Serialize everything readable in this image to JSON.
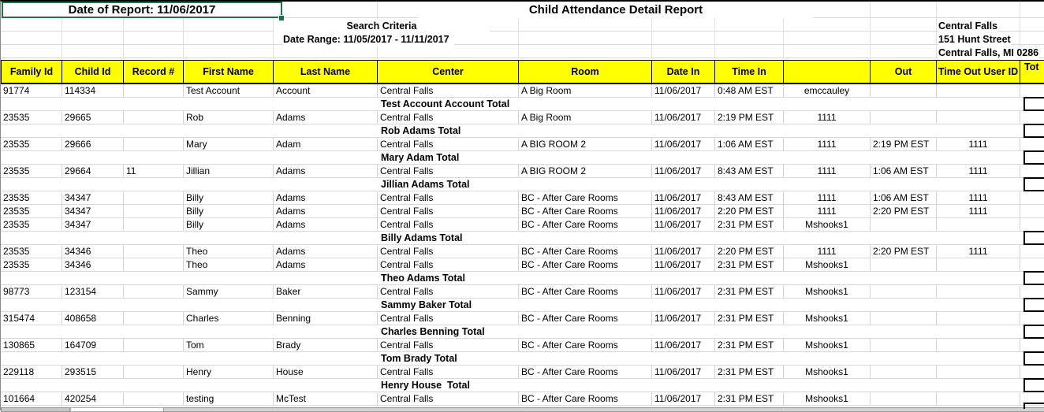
{
  "report": {
    "date_of_report": "Date of Report: 11/06/2017",
    "title": "Child Attendance Detail Report",
    "search_criteria_label": "Search Criteria",
    "date_range": "Date Range: 11/05/2017 - 11/11/2017",
    "center_name": "Central Falls",
    "center_address_line1": "151 Hunt Street",
    "center_address_line2": "Central Falls, MI 0286"
  },
  "colors": {
    "header_bg": "#ffff00",
    "selection_border": "#1f7245",
    "gridline": "#d9d9d9"
  },
  "table": {
    "columns": [
      {
        "id": "family_id",
        "label": "Family Id"
      },
      {
        "id": "child_id",
        "label": "Child Id"
      },
      {
        "id": "record",
        "label": "Record #"
      },
      {
        "id": "first_name",
        "label": "First Name"
      },
      {
        "id": "last_name",
        "label": "Last Name"
      },
      {
        "id": "center",
        "label": "Center"
      },
      {
        "id": "room",
        "label": "Room"
      },
      {
        "id": "date_in",
        "label": "Date In"
      },
      {
        "id": "time_in",
        "label": "Time In"
      },
      {
        "id": "time_in_user_id",
        "label": ""
      },
      {
        "id": "time_out",
        "label": "Out"
      },
      {
        "id": "time_out_user_id",
        "label": "Time Out User ID"
      },
      {
        "id": "total",
        "label": "Tot"
      }
    ],
    "rows": [
      {
        "type": "data",
        "cells": {
          "family_id": "91774",
          "child_id": "114334",
          "record": "",
          "first_name": "Test Account",
          "last_name": "Account",
          "center": "Central Falls",
          "room": "A Big Room",
          "date_in": "11/06/2017",
          "time_in": "0:48 AM EST",
          "time_in_user_id": "emccauley",
          "time_out": "",
          "time_out_user_id": ""
        }
      },
      {
        "type": "total",
        "label": "Test Account Account Total"
      },
      {
        "type": "data",
        "cells": {
          "family_id": "23535",
          "child_id": "29665",
          "record": "",
          "first_name": "Rob",
          "last_name": "Adams",
          "center": "Central Falls",
          "room": "A Big Room",
          "date_in": "11/06/2017",
          "time_in": "2:19 PM EST",
          "time_in_user_id": "1111",
          "time_out": "",
          "time_out_user_id": ""
        }
      },
      {
        "type": "total",
        "label": "Rob Adams Total"
      },
      {
        "type": "data",
        "cells": {
          "family_id": "23535",
          "child_id": "29666",
          "record": "",
          "first_name": "Mary",
          "last_name": "Adam",
          "center": "Central Falls",
          "room": "A BIG ROOM 2",
          "date_in": "11/06/2017",
          "time_in": "1:06 AM EST",
          "time_in_user_id": "1111",
          "time_out": "2:19 PM EST",
          "time_out_user_id": "1111"
        }
      },
      {
        "type": "total",
        "label": "Mary Adam Total"
      },
      {
        "type": "data",
        "cells": {
          "family_id": "23535",
          "child_id": "29664",
          "record": "11",
          "first_name": "Jillian",
          "last_name": "Adams",
          "center": "Central Falls",
          "room": "A BIG ROOM 2",
          "date_in": "11/06/2017",
          "time_in": "8:43 AM EST",
          "time_in_user_id": "1111",
          "time_out": "1:06 AM EST",
          "time_out_user_id": "1111"
        }
      },
      {
        "type": "total",
        "label": "Jillian Adams Total"
      },
      {
        "type": "data",
        "cells": {
          "family_id": "23535",
          "child_id": "34347",
          "record": "",
          "first_name": "Billy",
          "last_name": "Adams",
          "center": "Central Falls",
          "room": "BC - After Care Rooms",
          "date_in": "11/06/2017",
          "time_in": "8:43 AM EST",
          "time_in_user_id": "1111",
          "time_out": "1:06 AM EST",
          "time_out_user_id": "1111"
        }
      },
      {
        "type": "data",
        "cells": {
          "family_id": "23535",
          "child_id": "34347",
          "record": "",
          "first_name": "Billy",
          "last_name": "Adams",
          "center": "Central Falls",
          "room": "BC - After Care Rooms",
          "date_in": "11/06/2017",
          "time_in": "2:20 PM EST",
          "time_in_user_id": "1111",
          "time_out": "2:20 PM EST",
          "time_out_user_id": "1111"
        }
      },
      {
        "type": "data",
        "cells": {
          "family_id": "23535",
          "child_id": "34347",
          "record": "",
          "first_name": "Billy",
          "last_name": "Adams",
          "center": "Central Falls",
          "room": "BC - After Care Rooms",
          "date_in": "11/06/2017",
          "time_in": "2:31 PM EST",
          "time_in_user_id": "Mshooks1",
          "time_out": "",
          "time_out_user_id": ""
        }
      },
      {
        "type": "total",
        "label": "Billy Adams Total"
      },
      {
        "type": "data",
        "cells": {
          "family_id": "23535",
          "child_id": "34346",
          "record": "",
          "first_name": "Theo",
          "last_name": "Adams",
          "center": "Central Falls",
          "room": "BC - After Care Rooms",
          "date_in": "11/06/2017",
          "time_in": "2:20 PM EST",
          "time_in_user_id": "1111",
          "time_out": "2:20 PM EST",
          "time_out_user_id": "1111"
        }
      },
      {
        "type": "data",
        "cells": {
          "family_id": "23535",
          "child_id": "34346",
          "record": "",
          "first_name": "Theo",
          "last_name": "Adams",
          "center": "Central Falls",
          "room": "BC - After Care Rooms",
          "date_in": "11/06/2017",
          "time_in": "2:31 PM EST",
          "time_in_user_id": "Mshooks1",
          "time_out": "",
          "time_out_user_id": ""
        }
      },
      {
        "type": "total",
        "label": "Theo Adams Total"
      },
      {
        "type": "data",
        "cells": {
          "family_id": "98773",
          "child_id": "123154",
          "record": "",
          "first_name": "Sammy",
          "last_name": "Baker",
          "center": "Central Falls",
          "room": "BC - After Care Rooms",
          "date_in": "11/06/2017",
          "time_in": "2:31 PM EST",
          "time_in_user_id": "Mshooks1",
          "time_out": "",
          "time_out_user_id": ""
        }
      },
      {
        "type": "total",
        "label": "Sammy Baker Total"
      },
      {
        "type": "data",
        "cells": {
          "family_id": "315474",
          "child_id": "408658",
          "record": "",
          "first_name": "Charles",
          "last_name": "Benning",
          "center": "Central Falls",
          "room": "BC - After Care Rooms",
          "date_in": "11/06/2017",
          "time_in": "2:31 PM EST",
          "time_in_user_id": "Mshooks1",
          "time_out": "",
          "time_out_user_id": ""
        }
      },
      {
        "type": "total",
        "label": "Charles Benning Total"
      },
      {
        "type": "data",
        "cells": {
          "family_id": "130865",
          "child_id": "164709",
          "record": "",
          "first_name": "Tom",
          "last_name": "Brady",
          "center": "Central Falls",
          "room": "BC - After Care Rooms",
          "date_in": "11/06/2017",
          "time_in": "2:31 PM EST",
          "time_in_user_id": "Mshooks1",
          "time_out": "",
          "time_out_user_id": ""
        }
      },
      {
        "type": "total",
        "label": "Tom Brady Total"
      },
      {
        "type": "data",
        "cells": {
          "family_id": "229118",
          "child_id": "293515",
          "record": "",
          "first_name": "Henry",
          "last_name": "House",
          "center": "Central Falls",
          "room": "BC - After Care Rooms",
          "date_in": "11/06/2017",
          "time_in": "2:31 PM EST",
          "time_in_user_id": "Mshooks1",
          "time_out": "",
          "time_out_user_id": ""
        }
      },
      {
        "type": "total",
        "label": "Henry House  Total"
      },
      {
        "type": "data",
        "cells": {
          "family_id": "101664",
          "child_id": "420254",
          "record": "",
          "first_name": "testing",
          "last_name": "McTest",
          "center": "Central Falls",
          "room": "BC - After Care Rooms",
          "date_in": "11/06/2017",
          "time_in": "2:31 PM EST",
          "time_in_user_id": "Mshooks1",
          "time_out": "",
          "time_out_user_id": ""
        }
      }
    ]
  }
}
